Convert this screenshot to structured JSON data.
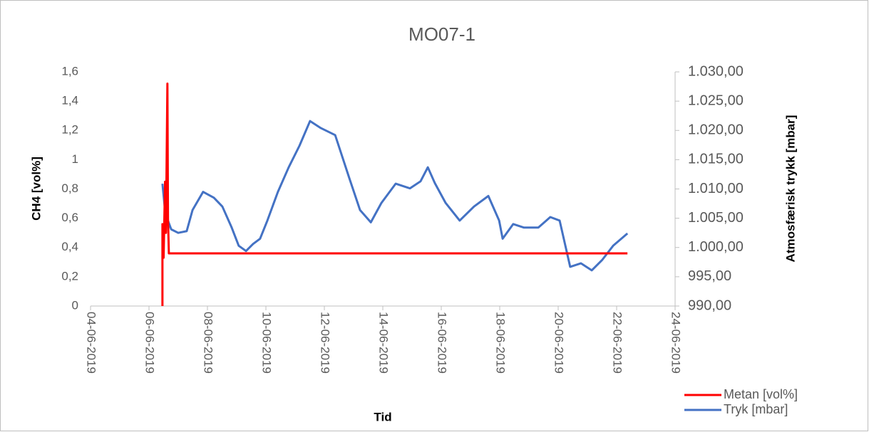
{
  "chart_data": {
    "type": "line",
    "title": "MO07-1",
    "xlabel": "Tid",
    "ylabel": "CH4 [vol%]",
    "y2label": "Atmosfærisk trykk [mbar]",
    "xlim": [
      43620,
      43640
    ],
    "xticks": [
      {
        "value": 43620,
        "label": "04-06-2019"
      },
      {
        "value": 43622,
        "label": "06-06-2019"
      },
      {
        "value": 43624,
        "label": "08-06-2019"
      },
      {
        "value": 43626,
        "label": "10-06-2019"
      },
      {
        "value": 43628,
        "label": "12-06-2019"
      },
      {
        "value": 43630,
        "label": "14-06-2019"
      },
      {
        "value": 43632,
        "label": "16-06-2019"
      },
      {
        "value": 43634,
        "label": "18-06-2019"
      },
      {
        "value": 43636,
        "label": "20-06-2019"
      },
      {
        "value": 43638,
        "label": "22-06-2019"
      },
      {
        "value": 43640,
        "label": "24-06-2019"
      }
    ],
    "ylim": [
      0,
      1.6
    ],
    "yticks": [
      0,
      {
        "value": 0.2,
        "label": "0,2"
      },
      {
        "value": 0.4,
        "label": "0,4"
      },
      {
        "value": 0.6,
        "label": "0,6"
      },
      {
        "value": 0.8,
        "label": "0,8"
      },
      1,
      {
        "value": 1.2,
        "label": "1,2"
      },
      {
        "value": 1.4,
        "label": "1,4"
      },
      {
        "value": 1.6,
        "label": "1,6"
      }
    ],
    "y2lim": [
      990,
      1030
    ],
    "y2ticks": [
      {
        "value": 990,
        "label": "990,00"
      },
      {
        "value": 995,
        "label": "995,00"
      },
      {
        "value": 1000,
        "label": "1.000,00"
      },
      {
        "value": 1005,
        "label": "1.005,00"
      },
      {
        "value": 1010,
        "label": "1.010,00"
      },
      {
        "value": 1015,
        "label": "1.015,00"
      },
      {
        "value": 1020,
        "label": "1.020,00"
      },
      {
        "value": 1025,
        "label": "1.025,00"
      },
      {
        "value": 1030,
        "label": "1.030,00"
      }
    ],
    "grid": false,
    "legend": "right",
    "series": [
      {
        "name": "Metan [vol%]",
        "color": "#ff0000",
        "x": [
          43622.46,
          43622.46,
          43622.5,
          43622.55,
          43622.58,
          43622.63,
          43622.65,
          43622.68,
          43638.37
        ],
        "values": [
          0,
          0.56,
          0.33,
          0.85,
          0.5,
          1.52,
          0.6,
          0.36,
          0.36
        ]
      },
      {
        "name": "Tryk [mbar]",
        "color": "#4472c4",
        "axis": "y2",
        "x": [
          43622.46,
          43622.56,
          43622.76,
          43623.0,
          43623.29,
          43623.49,
          43623.85,
          43624.22,
          43624.51,
          43624.83,
          43625.07,
          43625.32,
          43625.56,
          43625.8,
          43626.05,
          43626.41,
          43626.78,
          43627.15,
          43627.51,
          43627.88,
          43628.37,
          43628.85,
          43629.22,
          43629.59,
          43629.95,
          43630.44,
          43630.93,
          43631.29,
          43631.54,
          43631.78,
          43632.15,
          43632.63,
          43633.12,
          43633.61,
          43633.98,
          43634.1,
          43634.46,
          43634.83,
          43635.32,
          43635.73,
          43636.05,
          43636.41,
          43636.78,
          43637.15,
          43637.51,
          43637.88,
          43638.37
        ],
        "values": [
          1010.9,
          1005.8,
          1003.1,
          1002.5,
          1002.8,
          1006.4,
          1009.5,
          1008.5,
          1007.0,
          1003.4,
          1000.3,
          999.4,
          1000.6,
          1001.5,
          1004.6,
          1009.5,
          1013.7,
          1017.4,
          1021.6,
          1020.4,
          1019.2,
          1011.9,
          1006.4,
          1004.3,
          1007.6,
          1010.9,
          1010.1,
          1011.3,
          1013.7,
          1011.0,
          1007.6,
          1004.6,
          1007.0,
          1008.8,
          1004.6,
          1001.5,
          1004.0,
          1003.4,
          1003.4,
          1005.2,
          1004.6,
          996.7,
          997.3,
          996.1,
          997.9,
          1000.3,
          1002.4
        ]
      }
    ]
  }
}
